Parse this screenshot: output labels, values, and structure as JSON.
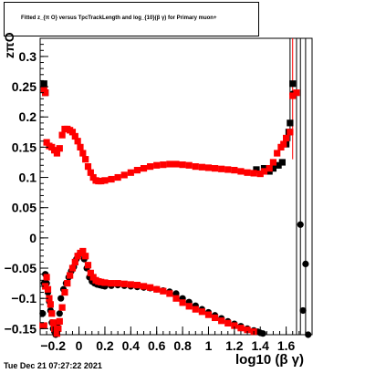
{
  "title": "Fitted  z_{π O}  versus TpcTrackLength and log_{10}(β γ) for Primary muon+",
  "timestamp": "Tue Dec 21 07:27:22 2021",
  "chart_data": {
    "type": "scatter",
    "title": "Fitted  z_{π O}  versus TpcTrackLength and log_{10}(β γ) for Primary muon+",
    "xlabel": "log10 (β γ)",
    "ylabel": "zπO",
    "xlim": [
      -0.3,
      1.8
    ],
    "ylim": [
      -0.16,
      0.33
    ],
    "xticks": [
      -0.2,
      0,
      0.2,
      0.4,
      0.6,
      0.8,
      1,
      1.2,
      1.4,
      1.6
    ],
    "xtick_labels": [
      "−0.2",
      "0",
      "0.2",
      "0.4",
      "0.6",
      "0.8",
      "1",
      "1.2",
      "1.4",
      "1.6"
    ],
    "yticks": [
      -0.15,
      -0.1,
      -0.05,
      0,
      0.05,
      0.1,
      0.15,
      0.2,
      0.25,
      0.3
    ],
    "ytick_labels": [
      "−0.15",
      "−0.1",
      "−0.05",
      "0",
      "0.05",
      "0.1",
      "0.15",
      "0.2",
      "0.25",
      "0.3"
    ],
    "series": [
      {
        "color": "#000000",
        "marker": "circle",
        "x": [
          -0.28,
          -0.27,
          -0.26,
          -0.25,
          -0.24,
          -0.23,
          -0.22,
          -0.21,
          -0.2,
          -0.19,
          -0.18,
          -0.17,
          -0.16,
          -0.15,
          -0.14,
          -0.12,
          -0.1,
          -0.08,
          -0.06,
          -0.04,
          -0.02,
          0.0,
          0.02,
          0.04,
          0.06,
          0.08,
          0.1,
          0.12,
          0.14,
          0.16,
          0.18,
          0.2,
          0.25,
          0.3,
          0.35,
          0.4,
          0.45,
          0.5,
          0.55,
          0.6,
          0.65,
          0.7,
          0.75,
          0.8,
          0.85,
          0.9,
          0.95,
          1.0,
          1.05,
          1.1,
          1.15,
          1.2,
          1.25,
          1.3,
          1.35,
          1.38,
          1.4,
          1.42,
          1.65,
          1.71,
          1.73,
          1.75,
          1.77
        ],
        "y": [
          -0.125,
          -0.075,
          -0.06,
          -0.075,
          -0.09,
          -0.105,
          -0.12,
          -0.14,
          -0.15,
          -0.155,
          -0.16,
          -0.15,
          -0.14,
          -0.125,
          -0.1,
          -0.085,
          -0.075,
          -0.065,
          -0.055,
          -0.048,
          -0.035,
          -0.028,
          -0.025,
          -0.035,
          -0.05,
          -0.065,
          -0.072,
          -0.075,
          -0.077,
          -0.078,
          -0.079,
          -0.08,
          -0.079,
          -0.078,
          -0.079,
          -0.08,
          -0.081,
          -0.082,
          -0.083,
          -0.085,
          -0.087,
          -0.089,
          -0.092,
          -0.1,
          -0.106,
          -0.112,
          -0.118,
          -0.123,
          -0.128,
          -0.133,
          -0.138,
          -0.142,
          -0.146,
          -0.15,
          -0.153,
          -0.155,
          -0.157,
          -0.158,
          0.238,
          0.022,
          -0.12,
          -0.043,
          -0.16
        ]
      },
      {
        "color": "#000000",
        "marker": "square",
        "x": [
          -0.27,
          -0.26,
          1.37,
          1.43,
          1.47,
          1.5,
          1.54,
          1.57,
          1.6,
          1.62,
          1.63,
          1.65
        ],
        "y": [
          0.255,
          0.24,
          0.113,
          0.115,
          0.11,
          0.115,
          0.12,
          0.125,
          0.155,
          0.175,
          0.19,
          0.255
        ]
      },
      {
        "color": "#ff0000",
        "marker": "square",
        "x": [
          -0.28,
          -0.27,
          -0.26,
          -0.25,
          -0.23,
          -0.21,
          -0.19,
          -0.17,
          -0.15,
          -0.13,
          -0.11,
          -0.09,
          -0.07,
          -0.05,
          -0.03,
          -0.01,
          0.01,
          0.03,
          0.05,
          0.07,
          0.09,
          0.11,
          0.13,
          0.15,
          0.17,
          0.2,
          0.25,
          0.3,
          0.35,
          0.4,
          0.45,
          0.5,
          0.55,
          0.6,
          0.65,
          0.7,
          0.75,
          0.8,
          0.85,
          0.9,
          0.95,
          1.0,
          1.05,
          1.1,
          1.15,
          1.2,
          1.25,
          1.3,
          1.35,
          1.4,
          1.43,
          1.47,
          1.5,
          1.53,
          1.56,
          1.58,
          1.6,
          1.63,
          1.65,
          1.68
        ],
        "y": [
          -0.145,
          0.245,
          0.24,
          0.158,
          0.152,
          0.15,
          0.145,
          0.14,
          0.148,
          0.17,
          0.18,
          0.18,
          0.178,
          0.175,
          0.168,
          0.16,
          0.15,
          0.14,
          0.13,
          0.118,
          0.108,
          0.1,
          0.095,
          0.094,
          0.094,
          0.095,
          0.097,
          0.1,
          0.104,
          0.108,
          0.112,
          0.115,
          0.118,
          0.12,
          0.121,
          0.122,
          0.122,
          0.121,
          0.12,
          0.118,
          0.117,
          0.116,
          0.115,
          0.114,
          0.113,
          0.112,
          0.11,
          0.108,
          0.107,
          0.106,
          0.11,
          0.115,
          0.125,
          0.14,
          0.15,
          0.155,
          0.165,
          0.175,
          0.235,
          0.24
        ]
      },
      {
        "color": "#ff0000",
        "marker": "square",
        "x": [
          -0.27,
          -0.26,
          -0.25,
          -0.24,
          -0.23,
          -0.22,
          -0.21,
          -0.2,
          -0.19,
          -0.18,
          -0.17,
          -0.16,
          -0.15,
          -0.13,
          -0.11,
          -0.09,
          -0.07,
          -0.05,
          -0.03,
          -0.01,
          0.01,
          0.03,
          0.05,
          0.07,
          0.09,
          0.11,
          0.13,
          0.15,
          0.17,
          0.2,
          0.25,
          0.3,
          0.35,
          0.4,
          0.45,
          0.5,
          0.55,
          0.6,
          0.65,
          0.7,
          0.75,
          0.8,
          0.85,
          0.9,
          0.95,
          1.0,
          1.05,
          1.1,
          1.15,
          1.2,
          1.25,
          1.3,
          1.35
        ],
        "y": [
          -0.145,
          -0.08,
          -0.065,
          -0.085,
          -0.1,
          -0.11,
          -0.125,
          -0.14,
          -0.15,
          -0.155,
          -0.158,
          -0.15,
          -0.138,
          -0.115,
          -0.09,
          -0.075,
          -0.062,
          -0.05,
          -0.04,
          -0.03,
          -0.025,
          -0.022,
          -0.03,
          -0.045,
          -0.058,
          -0.065,
          -0.07,
          -0.072,
          -0.073,
          -0.074,
          -0.075,
          -0.075,
          -0.076,
          -0.077,
          -0.078,
          -0.08,
          -0.082,
          -0.085,
          -0.088,
          -0.092,
          -0.1,
          -0.107,
          -0.113,
          -0.118,
          -0.122,
          -0.127,
          -0.132,
          -0.137,
          -0.141,
          -0.145,
          -0.149,
          -0.152,
          -0.155
        ]
      }
    ],
    "error_bars": [
      {
        "color": "#000000",
        "x": 1.63,
        "y_low": 0.16,
        "y_high": 0.33
      },
      {
        "color": "#ff0000",
        "x": 1.65,
        "y_low": 0.13,
        "y_high": 0.33
      },
      {
        "color": "#000000",
        "x": 1.71,
        "y_low": -0.16,
        "y_high": 0.33
      },
      {
        "color": "#000000",
        "x": 1.75,
        "y_low": -0.16,
        "y_high": 0.33
      },
      {
        "color": "#000000",
        "x": 1.68,
        "y_low": -0.16,
        "y_high": 0.33
      }
    ]
  }
}
